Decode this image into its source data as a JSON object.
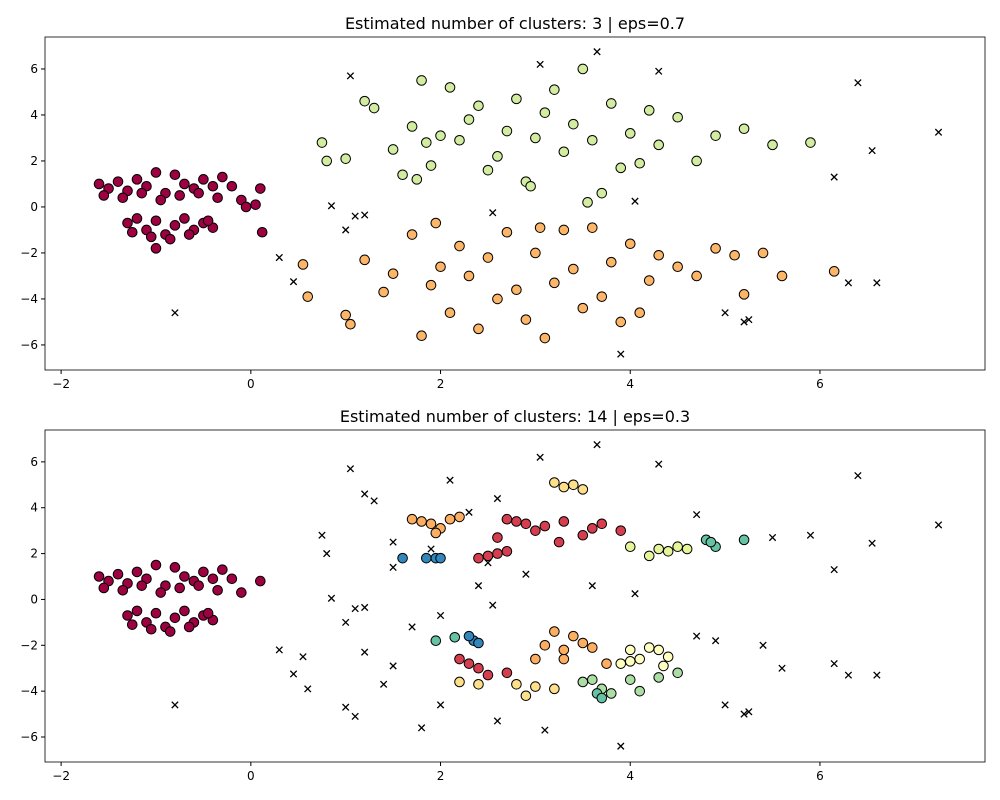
{
  "chart_data": [
    {
      "type": "scatter",
      "title": "Estimated number of clusters: 3 | eps=0.7",
      "xlim": [
        -2.17,
        7.74
      ],
      "ylim": [
        -7.09,
        7.39
      ],
      "xticks": [
        {
          "value": -2,
          "label": "−2"
        },
        0,
        2,
        4,
        6
      ],
      "yticks": [
        {
          "value": -6,
          "label": "−6"
        },
        {
          "value": -4,
          "label": "−4"
        },
        {
          "value": -2,
          "label": "−2"
        },
        0,
        2,
        4,
        6
      ],
      "series": [
        {
          "color": "#9e0142",
          "marker": "o",
          "x": [
            -1.6,
            -1.5,
            -1.4,
            -1.3,
            -1.2,
            -1.1,
            -1.0,
            -0.9,
            -0.8,
            -0.7,
            -0.6,
            -0.5,
            -0.4,
            -0.3,
            -1.55,
            -1.35,
            -1.15,
            -0.95,
            -0.75,
            -0.55,
            -0.35,
            -0.2,
            -0.1,
            0.05,
            -1.3,
            -1.2,
            -1.1,
            -1.0,
            -0.9,
            -0.8,
            -0.7,
            -0.6,
            -0.5,
            -0.4,
            -1.25,
            -1.05,
            -0.85,
            -0.65,
            -0.45,
            -1.0,
            0.1,
            0.12,
            -0.05
          ],
          "y": [
            1.0,
            0.8,
            1.1,
            0.7,
            1.2,
            0.9,
            1.5,
            0.6,
            1.4,
            1.0,
            0.8,
            1.2,
            0.9,
            1.3,
            0.5,
            0.4,
            0.6,
            0.3,
            0.5,
            0.6,
            0.4,
            0.9,
            0.3,
            0.1,
            -0.7,
            -0.5,
            -1.0,
            -0.6,
            -1.2,
            -0.8,
            -0.5,
            -1.0,
            -0.7,
            -0.9,
            -1.1,
            -1.3,
            -1.4,
            -1.2,
            -0.6,
            -1.8,
            0.8,
            -1.1,
            0.0
          ]
        },
        {
          "color": "#d2eca0",
          "marker": "o",
          "x": [
            0.75,
            0.8,
            1.0,
            1.2,
            1.3,
            1.5,
            1.6,
            1.7,
            1.8,
            1.85,
            1.9,
            2.0,
            2.1,
            2.2,
            2.3,
            2.4,
            2.5,
            2.6,
            2.7,
            2.8,
            2.9,
            3.0,
            3.1,
            3.2,
            3.3,
            3.4,
            3.5,
            3.6,
            3.7,
            3.8,
            3.9,
            4.0,
            4.1,
            4.2,
            4.3,
            4.5,
            4.7,
            4.9,
            5.2,
            5.5,
            5.9,
            3.55,
            2.95,
            1.75
          ],
          "y": [
            2.8,
            2.0,
            2.1,
            4.6,
            4.3,
            2.5,
            1.4,
            3.5,
            5.5,
            2.8,
            1.8,
            3.1,
            5.2,
            2.9,
            3.8,
            4.4,
            1.6,
            2.2,
            3.3,
            4.7,
            1.1,
            3.0,
            4.1,
            5.1,
            2.4,
            3.6,
            6.0,
            2.9,
            0.6,
            4.5,
            1.7,
            3.2,
            1.9,
            4.2,
            2.7,
            3.9,
            2.0,
            3.1,
            3.4,
            2.7,
            2.8,
            0.2,
            0.9,
            1.2
          ]
        },
        {
          "color": "#fdb567",
          "marker": "o",
          "x": [
            0.55,
            0.6,
            1.0,
            1.05,
            1.2,
            1.4,
            1.5,
            1.7,
            1.8,
            1.9,
            1.95,
            2.0,
            2.1,
            2.2,
            2.3,
            2.4,
            2.5,
            2.6,
            2.7,
            2.8,
            2.9,
            3.0,
            3.1,
            3.2,
            3.3,
            3.4,
            3.5,
            3.6,
            3.7,
            3.8,
            3.9,
            4.0,
            4.1,
            4.2,
            4.3,
            4.5,
            4.7,
            4.9,
            5.1,
            5.2,
            5.4,
            5.6,
            6.15,
            3.05
          ],
          "y": [
            -2.5,
            -3.9,
            -4.7,
            -5.1,
            -2.3,
            -3.7,
            -2.9,
            -1.2,
            -5.6,
            -3.4,
            -0.7,
            -2.6,
            -4.6,
            -1.7,
            -3.0,
            -5.3,
            -2.2,
            -4.0,
            -1.1,
            -3.6,
            -4.9,
            -2.0,
            -5.7,
            -3.3,
            -1.0,
            -2.7,
            -4.4,
            -0.9,
            -3.9,
            -2.4,
            -5.0,
            -1.6,
            -4.6,
            -3.2,
            -2.1,
            -2.6,
            -3.0,
            -1.8,
            -2.1,
            -3.8,
            -2.0,
            -3.0,
            -2.8,
            -0.9
          ]
        },
        {
          "color": "#000000",
          "marker": "x",
          "x": [
            1.05,
            3.05,
            3.65,
            4.3,
            6.4,
            7.25,
            6.55,
            6.15,
            4.05,
            0.85,
            1.0,
            1.1,
            1.2,
            2.55,
            0.3,
            0.45,
            -0.8,
            5.0,
            5.2,
            5.25,
            3.9,
            6.3,
            6.6
          ],
          "y": [
            5.7,
            6.2,
            6.75,
            5.9,
            5.4,
            3.25,
            2.45,
            1.3,
            0.25,
            0.05,
            -1.0,
            -0.4,
            -0.35,
            -0.25,
            -2.2,
            -3.25,
            -4.6,
            -4.6,
            -5.0,
            -4.9,
            -6.4,
            -3.3,
            -3.3
          ]
        }
      ]
    },
    {
      "type": "scatter",
      "title": "Estimated number of clusters: 14 | eps=0.3",
      "xlim": [
        -2.17,
        7.74
      ],
      "ylim": [
        -7.09,
        7.39
      ],
      "xticks": [
        {
          "value": -2,
          "label": "−2"
        },
        0,
        2,
        4,
        6
      ],
      "yticks": [
        {
          "value": -6,
          "label": "−6"
        },
        {
          "value": -4,
          "label": "−4"
        },
        {
          "value": -2,
          "label": "−2"
        },
        0,
        2,
        4,
        6
      ],
      "series": [
        {
          "color": "#9e0142",
          "marker": "o",
          "x": [
            -1.6,
            -1.5,
            -1.4,
            -1.3,
            -1.2,
            -1.1,
            -1.0,
            -0.9,
            -0.8,
            -0.7,
            -0.6,
            -0.5,
            -0.4,
            -0.3,
            -1.55,
            -1.35,
            -1.15,
            -0.95,
            -0.75,
            -0.55,
            -0.35,
            -0.2,
            -0.1,
            0.1,
            -1.3,
            -1.2,
            -1.1,
            -1.0,
            -0.9,
            -0.8,
            -0.7,
            -0.6,
            -0.5,
            -0.4,
            -1.25,
            -1.05,
            -0.85,
            -0.65,
            -0.45
          ],
          "y": [
            1.0,
            0.8,
            1.1,
            0.7,
            1.2,
            0.9,
            1.5,
            0.6,
            1.4,
            1.0,
            0.8,
            1.2,
            0.9,
            1.3,
            0.5,
            0.4,
            0.6,
            0.3,
            0.5,
            0.6,
            0.4,
            0.9,
            0.3,
            0.8,
            -0.7,
            -0.5,
            -1.0,
            -0.6,
            -1.2,
            -0.8,
            -0.5,
            -1.0,
            -0.7,
            -0.9,
            -1.1,
            -1.3,
            -1.4,
            -1.2,
            -0.6
          ]
        },
        {
          "color": "#d53e4f",
          "marker": "o",
          "x": [
            2.8,
            2.9,
            3.0,
            3.1,
            3.3,
            3.5,
            3.7,
            3.6,
            3.9,
            2.7,
            2.6,
            3.25,
            2.5,
            2.4,
            2.6,
            2.7,
            2.3,
            2.4,
            2.5,
            2.7,
            2.2
          ],
          "y": [
            3.4,
            3.3,
            3.0,
            3.2,
            3.4,
            2.8,
            3.3,
            3.1,
            3.0,
            3.5,
            2.7,
            2.5,
            1.9,
            1.8,
            2.0,
            2.1,
            -2.8,
            -3.0,
            -3.3,
            -3.2,
            -2.6
          ]
        },
        {
          "color": "#fdae61",
          "marker": "o",
          "x": [
            1.8,
            1.7,
            1.9,
            2.0,
            2.1,
            1.95,
            2.2,
            3.6,
            3.4,
            3.5,
            3.3,
            3.75,
            3.1,
            3.2,
            3.0,
            3.3
          ],
          "y": [
            3.4,
            3.5,
            3.3,
            3.1,
            3.5,
            2.9,
            3.6,
            -2.1,
            -1.6,
            -1.9,
            -2.6,
            -2.8,
            -2.0,
            -1.4,
            -2.6,
            -2.2
          ]
        },
        {
          "color": "#fee08b",
          "marker": "o",
          "x": [
            3.3,
            3.4,
            3.5,
            3.2,
            2.2,
            2.4,
            2.8,
            3.0,
            2.9,
            3.2
          ],
          "y": [
            4.9,
            5.0,
            4.8,
            5.1,
            -3.6,
            -3.7,
            -3.7,
            -3.8,
            -4.2,
            -3.9
          ]
        },
        {
          "color": "#ffffbf",
          "marker": "o",
          "x": [
            4.0,
            4.1,
            4.2,
            4.3,
            4.4,
            4.35,
            4.0,
            3.9
          ],
          "y": [
            -2.2,
            -2.6,
            -2.1,
            -2.2,
            -2.5,
            -2.9,
            -2.7,
            -2.8
          ]
        },
        {
          "color": "#e6f598",
          "marker": "o",
          "x": [
            4.0,
            4.3,
            4.4,
            4.5,
            4.6,
            4.2
          ],
          "y": [
            2.3,
            2.2,
            2.1,
            2.3,
            2.2,
            1.9
          ]
        },
        {
          "color": "#abdda4",
          "marker": "o",
          "x": [
            3.6,
            3.7,
            3.8,
            4.0,
            4.1,
            4.3,
            4.5,
            3.5
          ],
          "y": [
            -3.5,
            -3.9,
            -4.1,
            -3.5,
            -4.0,
            -3.4,
            -3.2,
            -3.6
          ]
        },
        {
          "color": "#66c2a5",
          "marker": "o",
          "x": [
            4.8,
            4.9,
            4.85,
            5.2,
            3.65,
            3.7,
            1.95,
            2.15
          ],
          "y": [
            2.6,
            2.3,
            2.5,
            2.6,
            -4.1,
            -4.3,
            -1.8,
            -1.65
          ]
        },
        {
          "color": "#3288bd",
          "marker": "o",
          "x": [
            1.6,
            1.85,
            1.95,
            2.0,
            2.35,
            2.3,
            2.4
          ],
          "y": [
            1.8,
            1.8,
            1.8,
            1.8,
            -1.8,
            -1.6,
            -1.9
          ]
        },
        {
          "color": "#000000",
          "marker": "x",
          "x": [
            1.05,
            3.05,
            3.65,
            4.3,
            6.4,
            7.25,
            6.55,
            6.15,
            4.05,
            0.85,
            1.0,
            1.1,
            1.2,
            2.55,
            0.3,
            0.45,
            -0.8,
            5.0,
            5.2,
            5.25,
            3.9,
            6.3,
            6.6,
            0.75,
            0.8,
            1.2,
            1.3,
            1.5,
            2.1,
            2.3,
            2.6,
            3.6,
            4.7,
            5.5,
            5.9,
            1.5,
            2.5,
            2.9,
            1.1,
            1.4,
            1.8,
            2.0,
            2.6,
            1.0,
            1.2,
            1.7,
            5.4,
            5.6,
            6.15,
            4.9,
            4.7,
            1.9,
            2.4,
            1.5,
            3.1,
            2.0,
            0.55,
            0.6
          ],
          "y": [
            5.7,
            6.2,
            6.75,
            5.9,
            5.4,
            3.25,
            2.45,
            1.3,
            0.25,
            0.05,
            -1.0,
            -0.4,
            -0.35,
            -0.25,
            -2.2,
            -3.25,
            -4.6,
            -4.6,
            -5.0,
            -4.9,
            -6.4,
            -3.3,
            -3.3,
            2.8,
            2.0,
            4.6,
            4.3,
            2.5,
            5.2,
            3.8,
            4.4,
            0.6,
            3.7,
            2.7,
            2.8,
            1.4,
            1.6,
            1.1,
            -5.1,
            -3.7,
            -5.6,
            -4.6,
            -5.3,
            -4.7,
            -2.3,
            -1.2,
            -2.0,
            -3.0,
            -2.8,
            -1.8,
            -1.6,
            2.2,
            0.6,
            -2.9,
            -5.7,
            -0.7,
            -2.5,
            -3.9
          ]
        }
      ]
    }
  ]
}
